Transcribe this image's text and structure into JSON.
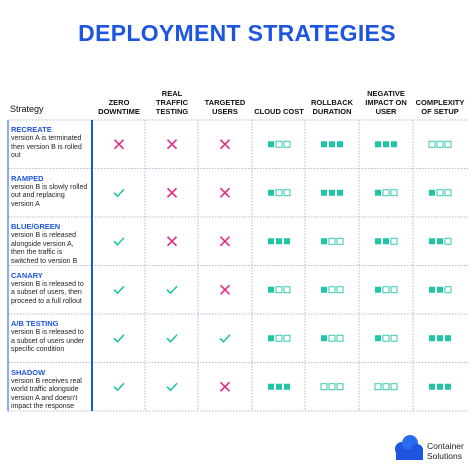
{
  "title": "DEPLOYMENT STRATEGIES",
  "header": {
    "strategy": "Strategy",
    "columns": [
      "ZERO DOWNTIME",
      "REAL TRAFFIC TESTING",
      "TARGETED USERS",
      "CLOUD COST",
      "ROLLBACK DURATION",
      "NEGATIVE IMPACT ON USER",
      "COMPLEXITY OF SETUP"
    ]
  },
  "rows": [
    {
      "name": "RECREATE",
      "description": "version A is terminated then version B is rolled out",
      "cells": [
        false,
        false,
        false,
        1,
        3,
        3,
        0
      ]
    },
    {
      "name": "RAMPED",
      "description": "version B is slowly rolled out and replacing version A",
      "cells": [
        true,
        false,
        false,
        1,
        3,
        1,
        1
      ]
    },
    {
      "name": "BLUE/GREEN",
      "description": "version B is released alongside version A, then the traffic is switched to version B",
      "cells": [
        true,
        false,
        false,
        3,
        1,
        2,
        2
      ]
    },
    {
      "name": "CANARY",
      "description": "version B is released to a subset of users, then proceed to a full rollout",
      "cells": [
        true,
        true,
        false,
        1,
        1,
        1,
        2
      ]
    },
    {
      "name": "A/B TESTING",
      "description": "version B is released to a subset of users under specific condition",
      "cells": [
        true,
        true,
        true,
        1,
        1,
        1,
        3
      ]
    },
    {
      "name": "SHADOW",
      "description": "version B receives real world traffic alongside version A and doesn't impact the response",
      "cells": [
        true,
        true,
        false,
        3,
        0,
        0,
        3
      ]
    }
  ],
  "logo": {
    "line1": "Container",
    "line2": "Solutions"
  }
}
